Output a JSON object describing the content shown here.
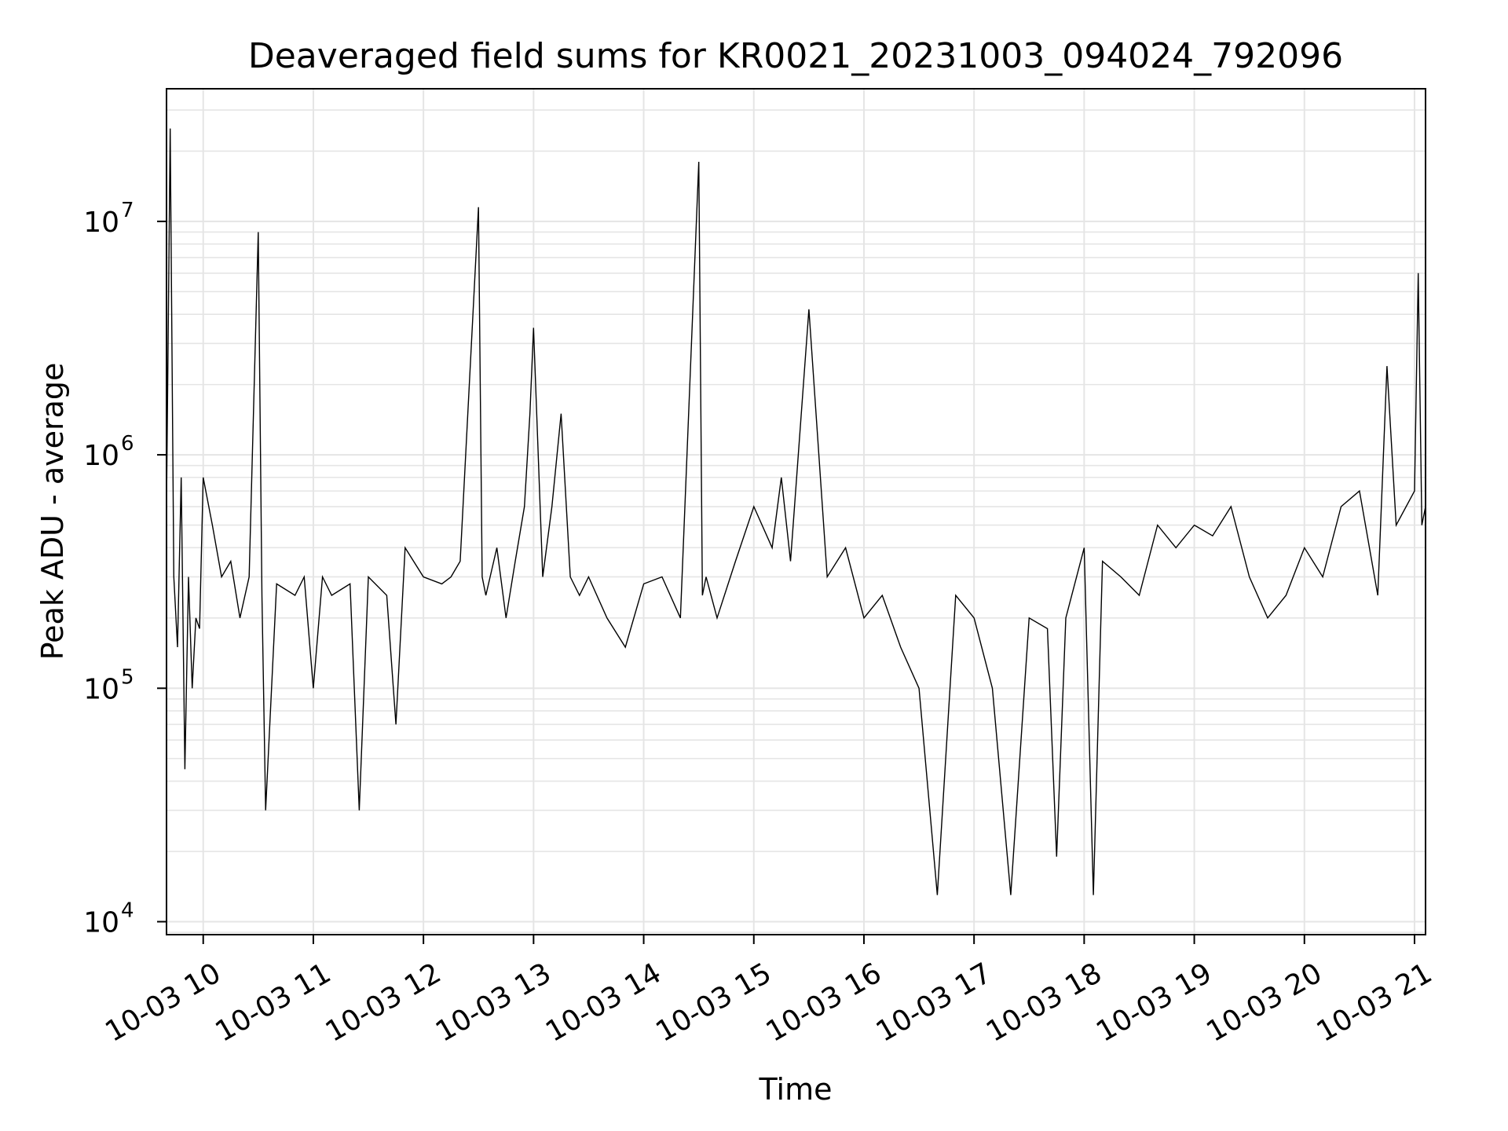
{
  "chart_data": {
    "type": "line",
    "title": "Deaveraged field sums for KR0021_20231003_094024_792096",
    "xlabel": "Time",
    "ylabel": "Peak ADU - average",
    "yscale": "log",
    "xlim": [
      "2023-10-03 09:40",
      "2023-10-03 21:06"
    ],
    "ylim": [
      8800,
      37000000
    ],
    "grid": true,
    "line_color": "#000000",
    "grid_color": "#e5e5e5",
    "x_ticks": [
      {
        "value": "2023-10-03 10:00",
        "label": "10-03 10"
      },
      {
        "value": "2023-10-03 11:00",
        "label": "10-03 11"
      },
      {
        "value": "2023-10-03 12:00",
        "label": "10-03 12"
      },
      {
        "value": "2023-10-03 13:00",
        "label": "10-03 13"
      },
      {
        "value": "2023-10-03 14:00",
        "label": "10-03 14"
      },
      {
        "value": "2023-10-03 15:00",
        "label": "10-03 15"
      },
      {
        "value": "2023-10-03 16:00",
        "label": "10-03 16"
      },
      {
        "value": "2023-10-03 17:00",
        "label": "10-03 17"
      },
      {
        "value": "2023-10-03 18:00",
        "label": "10-03 18"
      },
      {
        "value": "2023-10-03 19:00",
        "label": "10-03 19"
      },
      {
        "value": "2023-10-03 20:00",
        "label": "10-03 20"
      },
      {
        "value": "2023-10-03 21:00",
        "label": "10-03 21"
      }
    ],
    "y_ticks": [
      {
        "value": 10000,
        "base": "10",
        "exp": "4"
      },
      {
        "value": 100000,
        "base": "10",
        "exp": "5"
      },
      {
        "value": 1000000,
        "base": "10",
        "exp": "6"
      },
      {
        "value": 10000000,
        "base": "10",
        "exp": "7"
      }
    ],
    "series": [
      {
        "x": [
          "2023-10-03 09:40",
          "2023-10-03 09:42",
          "2023-10-03 09:44",
          "2023-10-03 09:46",
          "2023-10-03 09:48",
          "2023-10-03 09:50",
          "2023-10-03 09:52",
          "2023-10-03 09:54",
          "2023-10-03 09:56",
          "2023-10-03 09:58",
          "2023-10-03 10:00",
          "2023-10-03 10:05",
          "2023-10-03 10:10",
          "2023-10-03 10:15",
          "2023-10-03 10:20",
          "2023-10-03 10:25",
          "2023-10-03 10:30",
          "2023-10-03 10:32",
          "2023-10-03 10:34",
          "2023-10-03 10:40",
          "2023-10-03 10:50",
          "2023-10-03 10:55",
          "2023-10-03 11:00",
          "2023-10-03 11:05",
          "2023-10-03 11:10",
          "2023-10-03 11:20",
          "2023-10-03 11:25",
          "2023-10-03 11:30",
          "2023-10-03 11:40",
          "2023-10-03 11:45",
          "2023-10-03 11:50",
          "2023-10-03 12:00",
          "2023-10-03 12:10",
          "2023-10-03 12:15",
          "2023-10-03 12:20",
          "2023-10-03 12:30",
          "2023-10-03 12:32",
          "2023-10-03 12:34",
          "2023-10-03 12:40",
          "2023-10-03 12:45",
          "2023-10-03 12:50",
          "2023-10-03 12:55",
          "2023-10-03 12:58",
          "2023-10-03 13:00",
          "2023-10-03 13:05",
          "2023-10-03 13:10",
          "2023-10-03 13:15",
          "2023-10-03 13:20",
          "2023-10-03 13:25",
          "2023-10-03 13:30",
          "2023-10-03 13:40",
          "2023-10-03 13:50",
          "2023-10-03 14:00",
          "2023-10-03 14:10",
          "2023-10-03 14:20",
          "2023-10-03 14:30",
          "2023-10-03 14:32",
          "2023-10-03 14:34",
          "2023-10-03 14:40",
          "2023-10-03 14:50",
          "2023-10-03 15:00",
          "2023-10-03 15:10",
          "2023-10-03 15:15",
          "2023-10-03 15:20",
          "2023-10-03 15:30",
          "2023-10-03 15:40",
          "2023-10-03 15:50",
          "2023-10-03 16:00",
          "2023-10-03 16:10",
          "2023-10-03 16:20",
          "2023-10-03 16:30",
          "2023-10-03 16:40",
          "2023-10-03 16:50",
          "2023-10-03 17:00",
          "2023-10-03 17:10",
          "2023-10-03 17:20",
          "2023-10-03 17:30",
          "2023-10-03 17:40",
          "2023-10-03 17:45",
          "2023-10-03 17:50",
          "2023-10-03 18:00",
          "2023-10-03 18:05",
          "2023-10-03 18:10",
          "2023-10-03 18:20",
          "2023-10-03 18:30",
          "2023-10-03 18:40",
          "2023-10-03 18:50",
          "2023-10-03 19:00",
          "2023-10-03 19:10",
          "2023-10-03 19:20",
          "2023-10-03 19:30",
          "2023-10-03 19:40",
          "2023-10-03 19:50",
          "2023-10-03 20:00",
          "2023-10-03 20:10",
          "2023-10-03 20:20",
          "2023-10-03 20:30",
          "2023-10-03 20:40",
          "2023-10-03 20:45",
          "2023-10-03 20:50",
          "2023-10-03 21:00",
          "2023-10-03 21:02",
          "2023-10-03 21:04",
          "2023-10-03 21:06"
        ],
        "values": [
          600000,
          25000000,
          300000,
          150000,
          800000,
          45000,
          300000,
          100000,
          200000,
          180000,
          800000,
          500000,
          300000,
          350000,
          200000,
          300000,
          9000000,
          250000,
          30000,
          280000,
          250000,
          300000,
          100000,
          300000,
          250000,
          280000,
          30000,
          300000,
          250000,
          70000,
          400000,
          300000,
          280000,
          300000,
          350000,
          11500000,
          300000,
          250000,
          400000,
          200000,
          350000,
          600000,
          1500000,
          3500000,
          300000,
          600000,
          1500000,
          300000,
          250000,
          300000,
          200000,
          150000,
          280000,
          300000,
          200000,
          18000000,
          250000,
          300000,
          200000,
          350000,
          600000,
          400000,
          800000,
          350000,
          4200000,
          300000,
          400000,
          200000,
          250000,
          150000,
          100000,
          13000,
          250000,
          200000,
          100000,
          13000,
          200000,
          180000,
          19000,
          200000,
          400000,
          13000,
          350000,
          300000,
          250000,
          500000,
          400000,
          500000,
          450000,
          600000,
          300000,
          200000,
          250000,
          400000,
          300000,
          600000,
          700000,
          250000,
          2400000,
          500000,
          700000,
          6000000,
          500000,
          600000
        ]
      }
    ]
  }
}
